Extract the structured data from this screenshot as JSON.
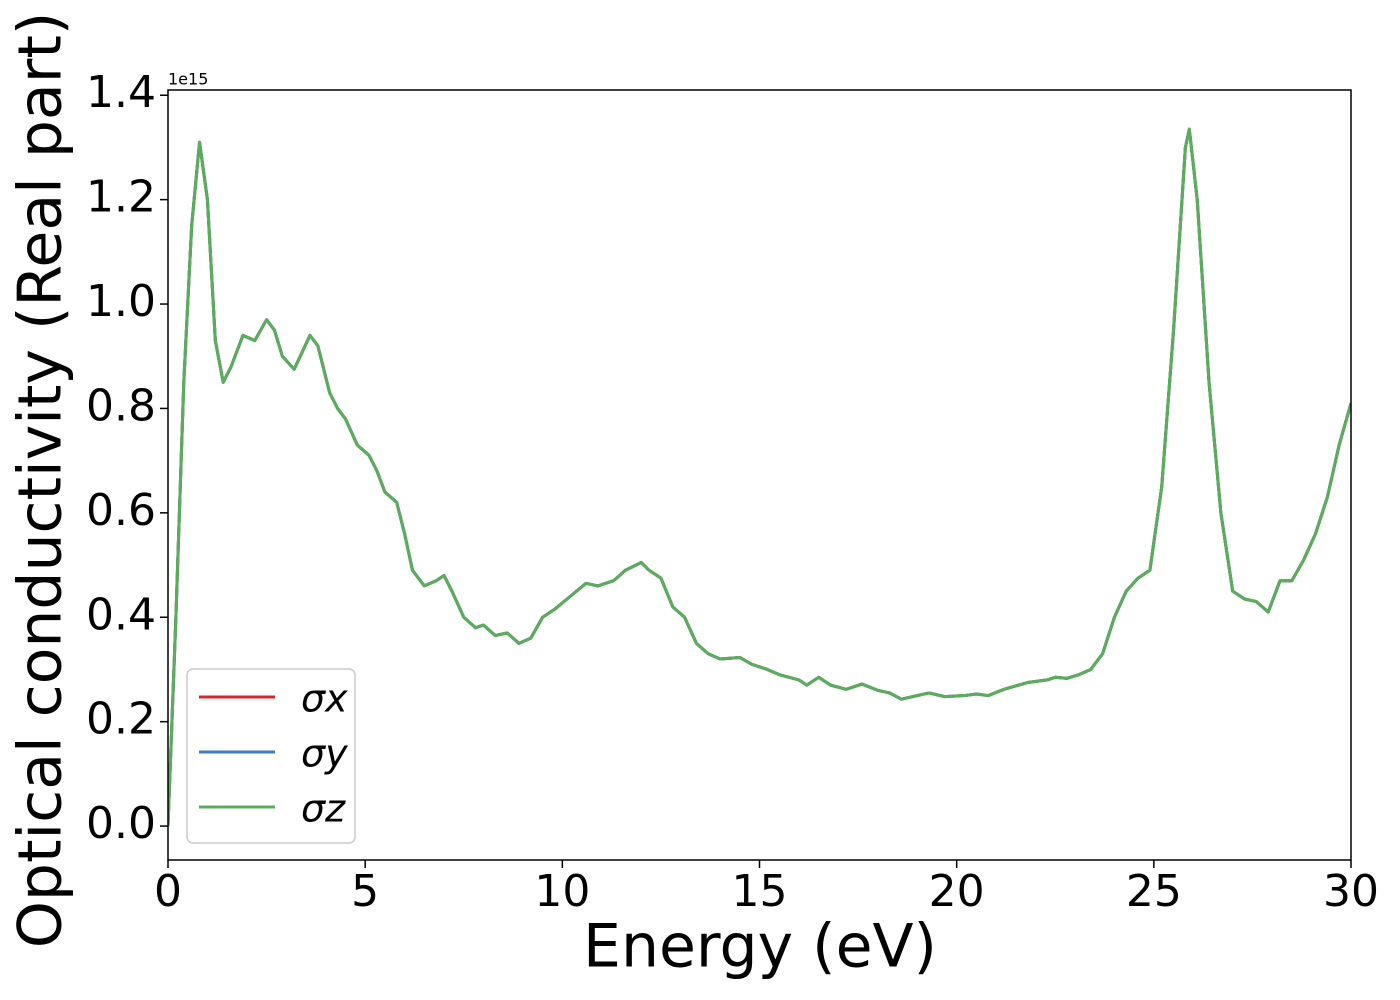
{
  "chart_data": {
    "type": "line",
    "xlabel": "Energy (eV)",
    "ylabel": "Optical conductivity (Real part)",
    "y_offset_label": "1e15",
    "x": [
      0,
      0.2,
      0.4,
      0.6,
      0.8,
      1.0,
      1.2,
      1.4,
      1.6,
      1.9,
      2.2,
      2.5,
      2.7,
      2.9,
      3.2,
      3.6,
      3.8,
      4.1,
      4.3,
      4.5,
      4.8,
      5.1,
      5.3,
      5.5,
      5.8,
      6.0,
      6.2,
      6.5,
      6.8,
      7.0,
      7.2,
      7.5,
      7.8,
      8.0,
      8.3,
      8.6,
      8.9,
      9.2,
      9.5,
      9.8,
      10.2,
      10.6,
      10.9,
      11.3,
      11.6,
      12.0,
      12.2,
      12.5,
      12.8,
      13.1,
      13.4,
      13.7,
      14.0,
      14.5,
      14.8,
      15.2,
      15.5,
      16.0,
      16.2,
      16.5,
      16.8,
      17.2,
      17.6,
      18.0,
      18.3,
      18.6,
      19.0,
      19.3,
      19.7,
      20.2,
      20.5,
      20.8,
      21.2,
      21.8,
      22.3,
      22.5,
      22.8,
      23.1,
      23.4,
      23.7,
      24.0,
      24.3,
      24.6,
      24.9,
      25.2,
      25.5,
      25.8,
      25.9,
      26.1,
      26.4,
      26.7,
      27.0,
      27.3,
      27.6,
      27.9,
      28.2,
      28.5,
      28.8,
      29.1,
      29.4,
      29.7,
      30.0
    ],
    "series": [
      {
        "name": "σx",
        "color": "#d62728",
        "values": [
          0.0,
          0.4,
          0.85,
          1.15,
          1.31,
          1.2,
          0.93,
          0.85,
          0.88,
          0.94,
          0.93,
          0.97,
          0.95,
          0.9,
          0.875,
          0.94,
          0.92,
          0.83,
          0.8,
          0.78,
          0.73,
          0.71,
          0.68,
          0.64,
          0.62,
          0.56,
          0.49,
          0.46,
          0.47,
          0.48,
          0.45,
          0.4,
          0.38,
          0.385,
          0.365,
          0.37,
          0.35,
          0.36,
          0.4,
          0.415,
          0.44,
          0.465,
          0.46,
          0.47,
          0.49,
          0.505,
          0.49,
          0.475,
          0.42,
          0.4,
          0.35,
          0.33,
          0.32,
          0.323,
          0.31,
          0.3,
          0.29,
          0.28,
          0.27,
          0.285,
          0.27,
          0.262,
          0.272,
          0.26,
          0.255,
          0.243,
          0.25,
          0.255,
          0.248,
          0.25,
          0.253,
          0.25,
          0.262,
          0.275,
          0.28,
          0.285,
          0.283,
          0.29,
          0.3,
          0.33,
          0.4,
          0.45,
          0.475,
          0.49,
          0.65,
          0.95,
          1.3,
          1.335,
          1.2,
          0.85,
          0.6,
          0.45,
          0.435,
          0.43,
          0.41,
          0.47,
          0.47,
          0.51,
          0.56,
          0.63,
          0.73,
          0.81
        ]
      },
      {
        "name": "σy",
        "color": "#3a7fc1",
        "values": [
          0.0,
          0.4,
          0.85,
          1.15,
          1.31,
          1.2,
          0.93,
          0.85,
          0.88,
          0.94,
          0.93,
          0.97,
          0.95,
          0.9,
          0.875,
          0.94,
          0.92,
          0.83,
          0.8,
          0.78,
          0.73,
          0.71,
          0.68,
          0.64,
          0.62,
          0.56,
          0.49,
          0.46,
          0.47,
          0.48,
          0.45,
          0.4,
          0.38,
          0.385,
          0.365,
          0.37,
          0.35,
          0.36,
          0.4,
          0.415,
          0.44,
          0.465,
          0.46,
          0.47,
          0.49,
          0.505,
          0.49,
          0.475,
          0.42,
          0.4,
          0.35,
          0.33,
          0.32,
          0.323,
          0.31,
          0.3,
          0.29,
          0.28,
          0.27,
          0.285,
          0.27,
          0.262,
          0.272,
          0.26,
          0.255,
          0.243,
          0.25,
          0.255,
          0.248,
          0.25,
          0.253,
          0.25,
          0.262,
          0.275,
          0.28,
          0.285,
          0.283,
          0.29,
          0.3,
          0.33,
          0.4,
          0.45,
          0.475,
          0.49,
          0.65,
          0.95,
          1.3,
          1.335,
          1.2,
          0.85,
          0.6,
          0.45,
          0.435,
          0.43,
          0.41,
          0.47,
          0.47,
          0.51,
          0.56,
          0.63,
          0.73,
          0.81
        ]
      },
      {
        "name": "σz",
        "color": "#5aad5a",
        "values": [
          0.0,
          0.4,
          0.85,
          1.15,
          1.31,
          1.2,
          0.93,
          0.85,
          0.88,
          0.94,
          0.93,
          0.97,
          0.95,
          0.9,
          0.875,
          0.94,
          0.92,
          0.83,
          0.8,
          0.78,
          0.73,
          0.71,
          0.68,
          0.64,
          0.62,
          0.56,
          0.49,
          0.46,
          0.47,
          0.48,
          0.45,
          0.4,
          0.38,
          0.385,
          0.365,
          0.37,
          0.35,
          0.36,
          0.4,
          0.415,
          0.44,
          0.465,
          0.46,
          0.47,
          0.49,
          0.505,
          0.49,
          0.475,
          0.42,
          0.4,
          0.35,
          0.33,
          0.32,
          0.323,
          0.31,
          0.3,
          0.29,
          0.28,
          0.27,
          0.285,
          0.27,
          0.262,
          0.272,
          0.26,
          0.255,
          0.243,
          0.25,
          0.255,
          0.248,
          0.25,
          0.253,
          0.25,
          0.262,
          0.275,
          0.28,
          0.285,
          0.283,
          0.29,
          0.3,
          0.33,
          0.4,
          0.45,
          0.475,
          0.49,
          0.65,
          0.95,
          1.3,
          1.335,
          1.2,
          0.85,
          0.6,
          0.45,
          0.435,
          0.43,
          0.41,
          0.47,
          0.47,
          0.51,
          0.56,
          0.63,
          0.73,
          0.81
        ]
      }
    ],
    "xlim": [
      0,
      30
    ],
    "xticks": [
      0,
      5,
      10,
      15,
      20,
      25,
      30
    ],
    "ylim": [
      -0.065,
      1.41
    ],
    "yticks": [
      {
        "value": 0,
        "label": "0.0"
      },
      0.2,
      0.4,
      0.6,
      0.8,
      {
        "value": 1,
        "label": "1.0"
      },
      1.2,
      1.4
    ],
    "legend": "lower left",
    "grid": false
  }
}
